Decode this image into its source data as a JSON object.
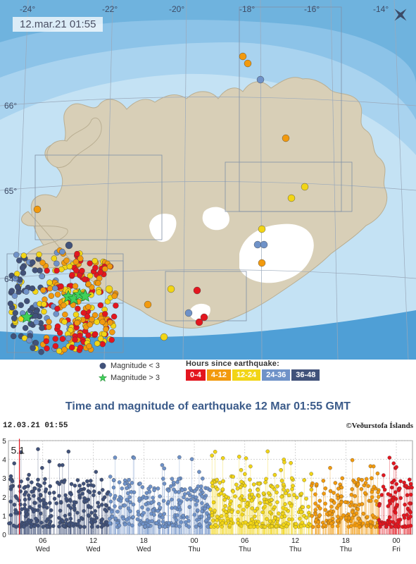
{
  "map": {
    "timestamp": "12.mar.21  01:55",
    "lon_labels": [
      "-24°",
      "-22°",
      "-20°",
      "-18°",
      "-16°",
      "-14°"
    ],
    "lat_labels": [
      "66°",
      "65°",
      "64°"
    ],
    "colors": {
      "sea_deep": "#6fb3de",
      "sea_mid": "#9ccced",
      "sea_shelf": "#c4e2f4",
      "land": "#d8cfb7",
      "glacier": "#ffffff",
      "grid": "#9aa9bb"
    }
  },
  "legend": {
    "magnitude_small": "Magnitude < 3",
    "magnitude_large": "Magnitude > 3",
    "hours_title": "Hours since earthquake:",
    "hour_bins": [
      {
        "label": "0-4",
        "color": "#e3161f"
      },
      {
        "label": "4-12",
        "color": "#f29a0e"
      },
      {
        "label": "12-24",
        "color": "#f2d516"
      },
      {
        "label": "24-36",
        "color": "#6f92c8"
      },
      {
        "label": "36-48",
        "color": "#41527a"
      }
    ]
  },
  "chart": {
    "title": "Time and magnitude of earthquake   12 Mar 01:55 GMT",
    "timestamp": "12.03.21 01:55",
    "copyright": "©Veðurstofa Íslands",
    "max_label": "5.1",
    "y_ticks": [
      "0",
      "1",
      "2",
      "3",
      "4",
      "5"
    ],
    "x_ticks": [
      {
        "hour": "06",
        "day": "Wed"
      },
      {
        "hour": "12",
        "day": "Wed"
      },
      {
        "hour": "18",
        "day": "Wed"
      },
      {
        "hour": "00",
        "day": "Thu"
      },
      {
        "hour": "06",
        "day": "Thu"
      },
      {
        "hour": "12",
        "day": "Thu"
      },
      {
        "hour": "18",
        "day": "Thu"
      },
      {
        "hour": "00",
        "day": "Fri"
      }
    ]
  },
  "chart_data": {
    "type": "scatter",
    "title": "Time and magnitude of earthquake   12 Mar 01:55 GMT",
    "xlabel": "",
    "ylabel": "",
    "ylim": [
      0,
      5
    ],
    "x_range": [
      "2021-03-10T01:55",
      "2021-03-12T01:55"
    ],
    "grid": true,
    "max_magnitude": 5.1,
    "series": [
      {
        "color": "#41527a",
        "hours_ago": [
          36,
          48
        ],
        "magnitude_range": [
          0.3,
          4.6
        ]
      },
      {
        "color": "#6f92c8",
        "hours_ago": [
          24,
          36
        ],
        "magnitude_range": [
          0.3,
          4.2
        ]
      },
      {
        "color": "#f2d516",
        "hours_ago": [
          12,
          24
        ],
        "magnitude_range": [
          0.3,
          4.5
        ]
      },
      {
        "color": "#f29a0e",
        "hours_ago": [
          4,
          12
        ],
        "magnitude_range": [
          0.3,
          4.0
        ]
      },
      {
        "color": "#e3161f",
        "hours_ago": [
          0,
          4
        ],
        "magnitude_range": [
          0.3,
          4.1
        ]
      }
    ]
  }
}
